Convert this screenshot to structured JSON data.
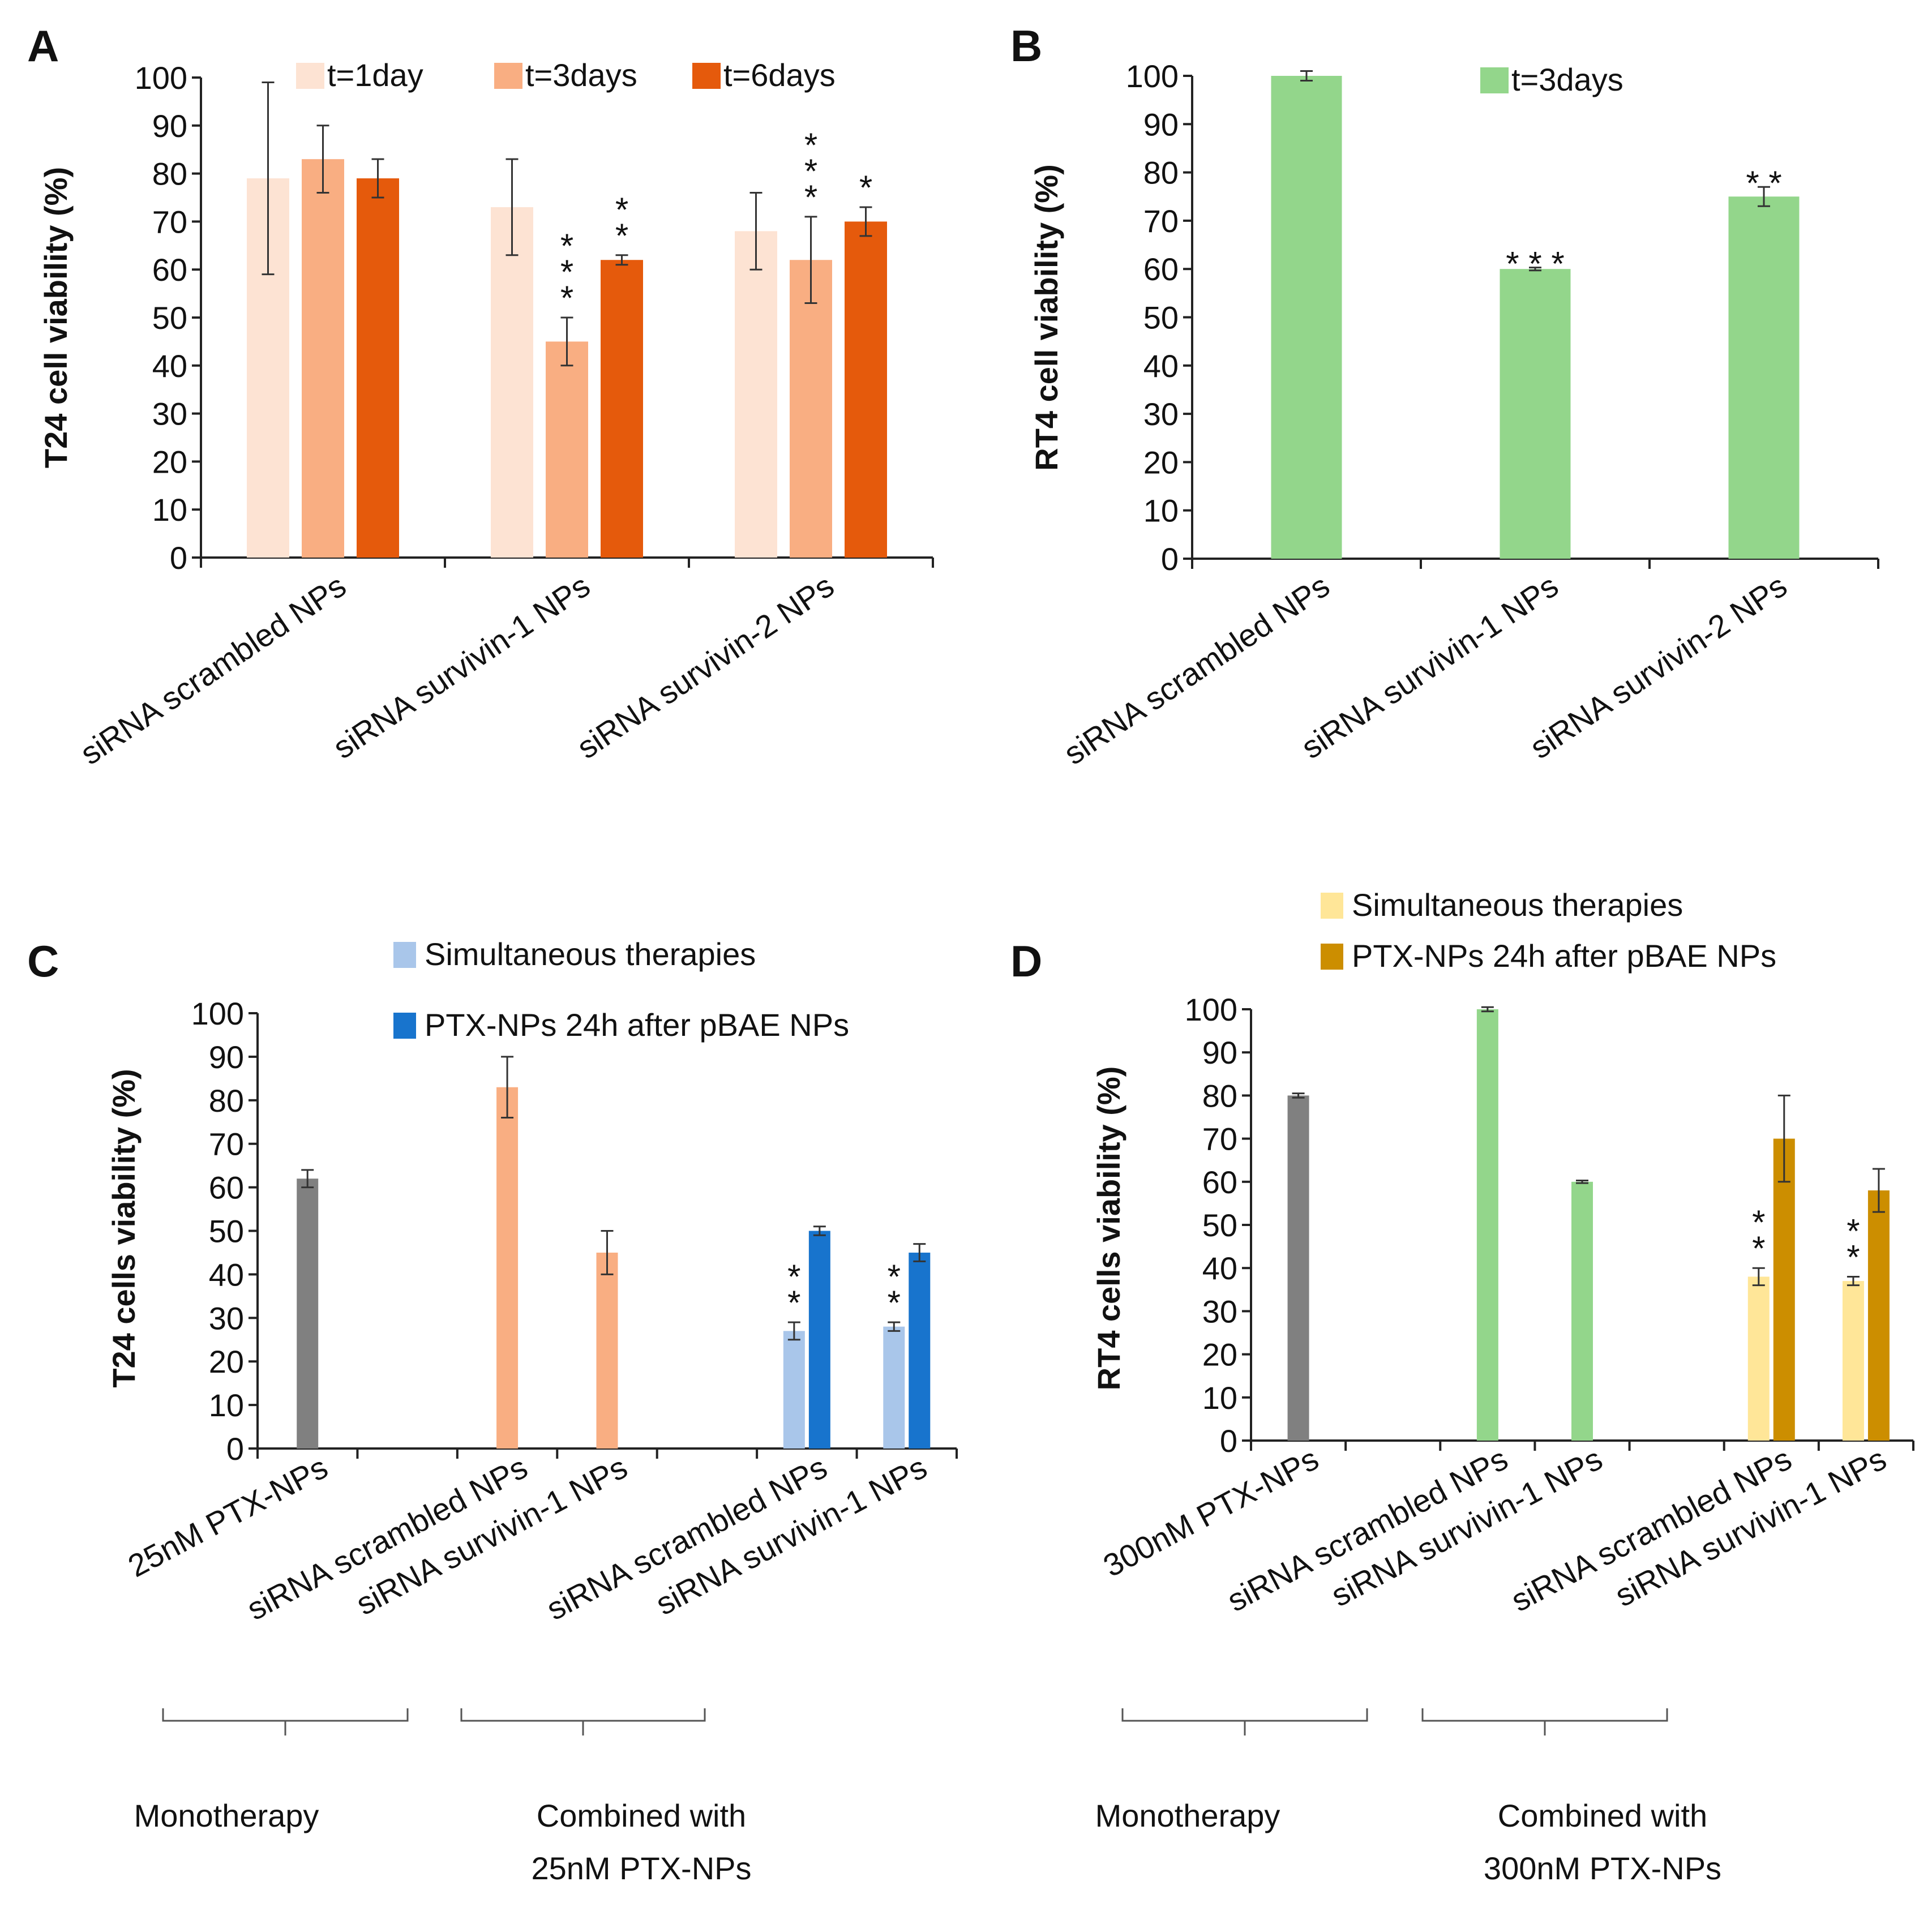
{
  "chart_data": [
    {
      "panel": "A",
      "type": "bar",
      "ylabel": "T24 cell viability (%)",
      "ylim": [
        0,
        100
      ],
      "yticks": [
        0,
        10,
        20,
        30,
        40,
        50,
        60,
        70,
        80,
        90,
        100
      ],
      "categories": [
        "siRNA scrambled NPs",
        "siRNA survivin-1 NPs",
        "siRNA survivin-2 NPs"
      ],
      "series": [
        {
          "name": "t=1day",
          "color": "#FDE3D3",
          "values": [
            79,
            73,
            68
          ],
          "errors": [
            20,
            10,
            8
          ],
          "sig": [
            "",
            "",
            ""
          ]
        },
        {
          "name": "t=3days",
          "color": "#F9AE82",
          "values": [
            83,
            45,
            62
          ],
          "errors": [
            7,
            5,
            9
          ],
          "sig": [
            "",
            "***",
            "***"
          ]
        },
        {
          "name": "t=6days",
          "color": "#E55A0C",
          "values": [
            79,
            62,
            70
          ],
          "errors": [
            4,
            1,
            3
          ],
          "sig": [
            "",
            "**",
            "*"
          ]
        }
      ],
      "legend_position": "top"
    },
    {
      "panel": "B",
      "type": "bar",
      "ylabel": "RT4 cell viability (%)",
      "ylim": [
        0,
        100
      ],
      "yticks": [
        0,
        10,
        20,
        30,
        40,
        50,
        60,
        70,
        80,
        90,
        100
      ],
      "categories": [
        "siRNA scrambled NPs",
        "siRNA survivin-1 NPs",
        "siRNA survivin-2 NPs"
      ],
      "series": [
        {
          "name": "t=3days",
          "color": "#93D68B",
          "values": [
            100,
            60,
            75
          ],
          "errors": [
            1,
            0.3,
            2
          ],
          "sig": [
            "",
            "***",
            "**"
          ]
        }
      ],
      "legend_position": "top"
    },
    {
      "panel": "C",
      "type": "bar",
      "ylabel": "T24 cells viability (%)",
      "ylim": [
        0,
        100
      ],
      "yticks": [
        0,
        10,
        20,
        30,
        40,
        50,
        60,
        70,
        80,
        90,
        100
      ],
      "categories": [
        "25nM PTX-NPs",
        "",
        "siRNA scrambled NPs",
        "siRNA survivin-1 NPs",
        "",
        "siRNA scrambled NPs",
        "siRNA survivin-1 NPs"
      ],
      "bars": [
        {
          "cat": 0,
          "pos": 0,
          "value": 62,
          "error": 2,
          "color": "#808080",
          "sig": ""
        },
        {
          "cat": 2,
          "pos": 0,
          "value": 83,
          "error": 7,
          "color": "#F9AE82",
          "sig": ""
        },
        {
          "cat": 3,
          "pos": 0,
          "value": 45,
          "error": 5,
          "color": "#F9AE82",
          "sig": ""
        },
        {
          "cat": 5,
          "pos": -1,
          "value": 27,
          "error": 2,
          "color": "#A9C6EA",
          "sig": "**"
        },
        {
          "cat": 5,
          "pos": 1,
          "value": 50,
          "error": 1,
          "color": "#1874CD",
          "sig": ""
        },
        {
          "cat": 6,
          "pos": -1,
          "value": 28,
          "error": 1,
          "color": "#A9C6EA",
          "sig": "**"
        },
        {
          "cat": 6,
          "pos": 1,
          "value": 45,
          "error": 2,
          "color": "#1874CD",
          "sig": ""
        }
      ],
      "legend": [
        {
          "name": "Simultaneous therapies",
          "color": "#A9C6EA"
        },
        {
          "name": "PTX-NPs 24h after pBAE NPs",
          "color": "#1874CD"
        }
      ],
      "groups": [
        {
          "label_lines": [
            "Monotherapy"
          ]
        },
        {
          "label_lines": [
            "Combined with",
            "25nM PTX-NPs"
          ]
        }
      ]
    },
    {
      "panel": "D",
      "type": "bar",
      "ylabel": "RT4 cells viability (%)",
      "ylim": [
        0,
        100
      ],
      "yticks": [
        0,
        10,
        20,
        30,
        40,
        50,
        60,
        70,
        80,
        90,
        100
      ],
      "categories": [
        "300nM PTX-NPs",
        "",
        "siRNA scrambled NPs",
        "siRNA survivin-1 NPs",
        "",
        "siRNA scrambled NPs",
        "siRNA survivin-1 NPs"
      ],
      "bars": [
        {
          "cat": 0,
          "pos": 0,
          "value": 80,
          "error": 0.5,
          "color": "#808080",
          "sig": ""
        },
        {
          "cat": 2,
          "pos": 0,
          "value": 100,
          "error": 0.5,
          "color": "#93D68B",
          "sig": ""
        },
        {
          "cat": 3,
          "pos": 0,
          "value": 60,
          "error": 0.3,
          "color": "#93D68B",
          "sig": ""
        },
        {
          "cat": 5,
          "pos": -1,
          "value": 38,
          "error": 2,
          "color": "#FFE698",
          "sig": "**"
        },
        {
          "cat": 5,
          "pos": 1,
          "value": 70,
          "error": 10,
          "color": "#CC8E00",
          "sig": ""
        },
        {
          "cat": 6,
          "pos": -1,
          "value": 37,
          "error": 1,
          "color": "#FFE698",
          "sig": "**"
        },
        {
          "cat": 6,
          "pos": 1,
          "value": 58,
          "error": 5,
          "color": "#CC8E00",
          "sig": ""
        }
      ],
      "legend": [
        {
          "name": "Simultaneous therapies",
          "color": "#FFE698"
        },
        {
          "name": "PTX-NPs 24h after pBAE NPs",
          "color": "#CC8E00"
        }
      ],
      "groups": [
        {
          "label_lines": [
            "Monotherapy"
          ]
        },
        {
          "label_lines": [
            "Combined with",
            "300nM PTX-NPs"
          ]
        }
      ]
    }
  ]
}
